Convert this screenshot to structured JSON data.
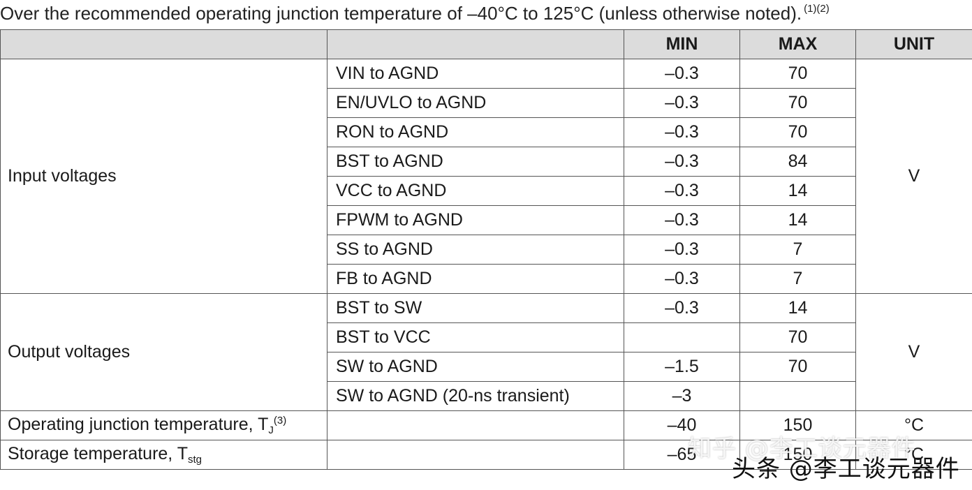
{
  "caption": {
    "text": "Over the recommended operating junction temperature of –40°C to 125°C (unless otherwise noted).",
    "footnotes": "(1)(2)"
  },
  "table": {
    "headers": [
      "",
      "",
      "MIN",
      "MAX",
      "UNIT"
    ],
    "groups": [
      {
        "label": "Input voltages",
        "unit": "V",
        "rows": [
          {
            "param": "VIN to AGND",
            "min": "–0.3",
            "max": "70"
          },
          {
            "param": "EN/UVLO to AGND",
            "min": "–0.3",
            "max": "70"
          },
          {
            "param": "RON to AGND",
            "min": "–0.3",
            "max": "70"
          },
          {
            "param": "BST to AGND",
            "min": "–0.3",
            "max": "84"
          },
          {
            "param": "VCC to AGND",
            "min": "–0.3",
            "max": "14"
          },
          {
            "param": "FPWM to AGND",
            "min": "–0.3",
            "max": "14"
          },
          {
            "param": "SS to AGND",
            "min": "–0.3",
            "max": "7"
          },
          {
            "param": "FB to AGND",
            "min": "–0.3",
            "max": "7"
          }
        ]
      },
      {
        "label": "Output voltages",
        "unit": "V",
        "rows": [
          {
            "param": "BST to SW",
            "min": "–0.3",
            "max": "14"
          },
          {
            "param": "BST to VCC",
            "min": "",
            "max": "70"
          },
          {
            "param": "SW to AGND",
            "min": "–1.5",
            "max": "70"
          },
          {
            "param": "SW to AGND (20-ns transient)",
            "min": "–3",
            "max": ""
          }
        ]
      }
    ],
    "temps": [
      {
        "label": "Operating junction temperature, T",
        "subscript": "J",
        "superscript": "(3)",
        "min": "–40",
        "max": "150",
        "unit": "°C"
      },
      {
        "label": "Storage temperature, T",
        "subscript": "stg",
        "superscript": "",
        "min": "–65",
        "max": "150",
        "unit": "°C"
      }
    ]
  },
  "watermarks": {
    "line1": "知乎 @李工谈元器件",
    "line2": "头条 @李工谈元器件"
  }
}
